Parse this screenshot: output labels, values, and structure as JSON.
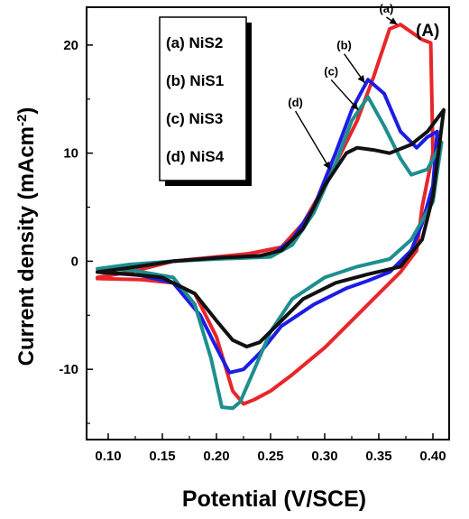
{
  "chart_data": {
    "type": "line",
    "panel_label": "(A)",
    "xlabel": "Potential (V/SCE)",
    "ylabel_main": "Current density  (mAcm",
    "ylabel_sup": "-2",
    "ylabel_close": ")",
    "xlim": [
      0.08,
      0.415
    ],
    "ylim": [
      -16.5,
      23.5
    ],
    "xticks": [
      0.1,
      0.15,
      0.2,
      0.25,
      0.3,
      0.35,
      0.4
    ],
    "xtick_labels": [
      "0.10",
      "0.15",
      "0.20",
      "0.25",
      "0.30",
      "0.35",
      "0.40"
    ],
    "yticks": [
      20,
      10,
      0,
      -10
    ],
    "ytick_labels": [
      "20",
      "10",
      "0",
      "-10"
    ],
    "legend_position": "top-left",
    "legend": [
      "(a) NiS2",
      "(b) NiS1",
      "(c) NiS3",
      "(d) NiS4"
    ],
    "series": [
      {
        "name": "(a) NiS2",
        "label": "(a)",
        "color": "#e8262a",
        "label_pos": [
          0.357,
          23.0
        ],
        "arrow_to": [
          0.367,
          21.9
        ],
        "points": [
          [
            0.09,
            -1.5
          ],
          [
            0.12,
            -1.0
          ],
          [
            0.16,
            0.0
          ],
          [
            0.2,
            0.4
          ],
          [
            0.23,
            0.7
          ],
          [
            0.26,
            1.3
          ],
          [
            0.28,
            3.5
          ],
          [
            0.3,
            7.0
          ],
          [
            0.31,
            9.0
          ],
          [
            0.33,
            13.0
          ],
          [
            0.345,
            17.0
          ],
          [
            0.36,
            21.5
          ],
          [
            0.37,
            21.9
          ],
          [
            0.39,
            20.5
          ],
          [
            0.398,
            20.2
          ],
          [
            0.4,
            10.0
          ],
          [
            0.39,
            5.0
          ],
          [
            0.385,
            1.0
          ],
          [
            0.37,
            -1.0
          ],
          [
            0.35,
            -3.0
          ],
          [
            0.33,
            -5.0
          ],
          [
            0.3,
            -8.0
          ],
          [
            0.27,
            -10.5
          ],
          [
            0.25,
            -12.0
          ],
          [
            0.235,
            -12.8
          ],
          [
            0.225,
            -13.2
          ],
          [
            0.215,
            -12.0
          ],
          [
            0.2,
            -7.0
          ],
          [
            0.18,
            -3.0
          ],
          [
            0.16,
            -2.0
          ],
          [
            0.13,
            -1.7
          ],
          [
            0.09,
            -1.6
          ]
        ]
      },
      {
        "name": "(b) NiS1",
        "label": "(b)",
        "color": "#1c1ce6",
        "label_pos": [
          0.318,
          19.6
        ],
        "arrow_to": [
          0.337,
          16.5
        ],
        "points": [
          [
            0.09,
            -1.0
          ],
          [
            0.12,
            -0.5
          ],
          [
            0.16,
            0.0
          ],
          [
            0.2,
            0.3
          ],
          [
            0.25,
            0.5
          ],
          [
            0.27,
            2.0
          ],
          [
            0.29,
            5.0
          ],
          [
            0.31,
            10.0
          ],
          [
            0.325,
            14.0
          ],
          [
            0.34,
            16.8
          ],
          [
            0.355,
            15.5
          ],
          [
            0.37,
            12.0
          ],
          [
            0.385,
            10.5
          ],
          [
            0.395,
            11.5
          ],
          [
            0.404,
            12.0
          ],
          [
            0.4,
            7.0
          ],
          [
            0.39,
            3.5
          ],
          [
            0.38,
            1.0
          ],
          [
            0.36,
            -1.0
          ],
          [
            0.34,
            -1.8
          ],
          [
            0.32,
            -2.5
          ],
          [
            0.29,
            -4.0
          ],
          [
            0.26,
            -6.0
          ],
          [
            0.24,
            -8.5
          ],
          [
            0.225,
            -10.0
          ],
          [
            0.212,
            -10.3
          ],
          [
            0.2,
            -8.0
          ],
          [
            0.185,
            -5.0
          ],
          [
            0.16,
            -2.0
          ],
          [
            0.13,
            -1.3
          ],
          [
            0.09,
            -1.0
          ]
        ]
      },
      {
        "name": "(c) NiS3",
        "label": "(c)",
        "color": "#1e8e8e",
        "label_pos": [
          0.306,
          17.2
        ],
        "arrow_to": [
          0.331,
          14.0
        ],
        "points": [
          [
            0.09,
            -0.7
          ],
          [
            0.12,
            -0.3
          ],
          [
            0.16,
            0.0
          ],
          [
            0.2,
            0.2
          ],
          [
            0.25,
            0.4
          ],
          [
            0.27,
            1.5
          ],
          [
            0.29,
            4.5
          ],
          [
            0.31,
            9.0
          ],
          [
            0.325,
            13.0
          ],
          [
            0.34,
            15.2
          ],
          [
            0.355,
            12.5
          ],
          [
            0.37,
            9.5
          ],
          [
            0.38,
            8.0
          ],
          [
            0.395,
            8.5
          ],
          [
            0.408,
            11.0
          ],
          [
            0.4,
            5.5
          ],
          [
            0.38,
            2.0
          ],
          [
            0.36,
            0.2
          ],
          [
            0.33,
            -0.5
          ],
          [
            0.3,
            -1.5
          ],
          [
            0.27,
            -3.5
          ],
          [
            0.25,
            -6.5
          ],
          [
            0.235,
            -10.0
          ],
          [
            0.222,
            -13.0
          ],
          [
            0.215,
            -13.6
          ],
          [
            0.205,
            -13.5
          ],
          [
            0.195,
            -9.0
          ],
          [
            0.18,
            -4.0
          ],
          [
            0.16,
            -1.5
          ],
          [
            0.12,
            -0.8
          ],
          [
            0.09,
            -0.7
          ]
        ]
      },
      {
        "name": "(d) NiS4",
        "label": "(d)",
        "color": "#111111",
        "label_pos": [
          0.273,
          14.3
        ],
        "arrow_to": [
          0.305,
          8.5
        ],
        "points": [
          [
            0.09,
            -1.0
          ],
          [
            0.12,
            -0.6
          ],
          [
            0.16,
            0.0
          ],
          [
            0.2,
            0.3
          ],
          [
            0.24,
            0.5
          ],
          [
            0.26,
            1.0
          ],
          [
            0.28,
            3.0
          ],
          [
            0.3,
            7.0
          ],
          [
            0.32,
            10.0
          ],
          [
            0.33,
            10.5
          ],
          [
            0.345,
            10.3
          ],
          [
            0.36,
            10.0
          ],
          [
            0.38,
            10.8
          ],
          [
            0.395,
            12.0
          ],
          [
            0.41,
            14.0
          ],
          [
            0.4,
            6.0
          ],
          [
            0.39,
            2.0
          ],
          [
            0.37,
            -0.5
          ],
          [
            0.34,
            -1.2
          ],
          [
            0.31,
            -2.0
          ],
          [
            0.28,
            -3.5
          ],
          [
            0.26,
            -5.5
          ],
          [
            0.24,
            -7.5
          ],
          [
            0.228,
            -7.9
          ],
          [
            0.215,
            -7.3
          ],
          [
            0.2,
            -5.5
          ],
          [
            0.18,
            -3.0
          ],
          [
            0.15,
            -1.5
          ],
          [
            0.12,
            -1.2
          ],
          [
            0.09,
            -1.0
          ]
        ]
      }
    ]
  }
}
